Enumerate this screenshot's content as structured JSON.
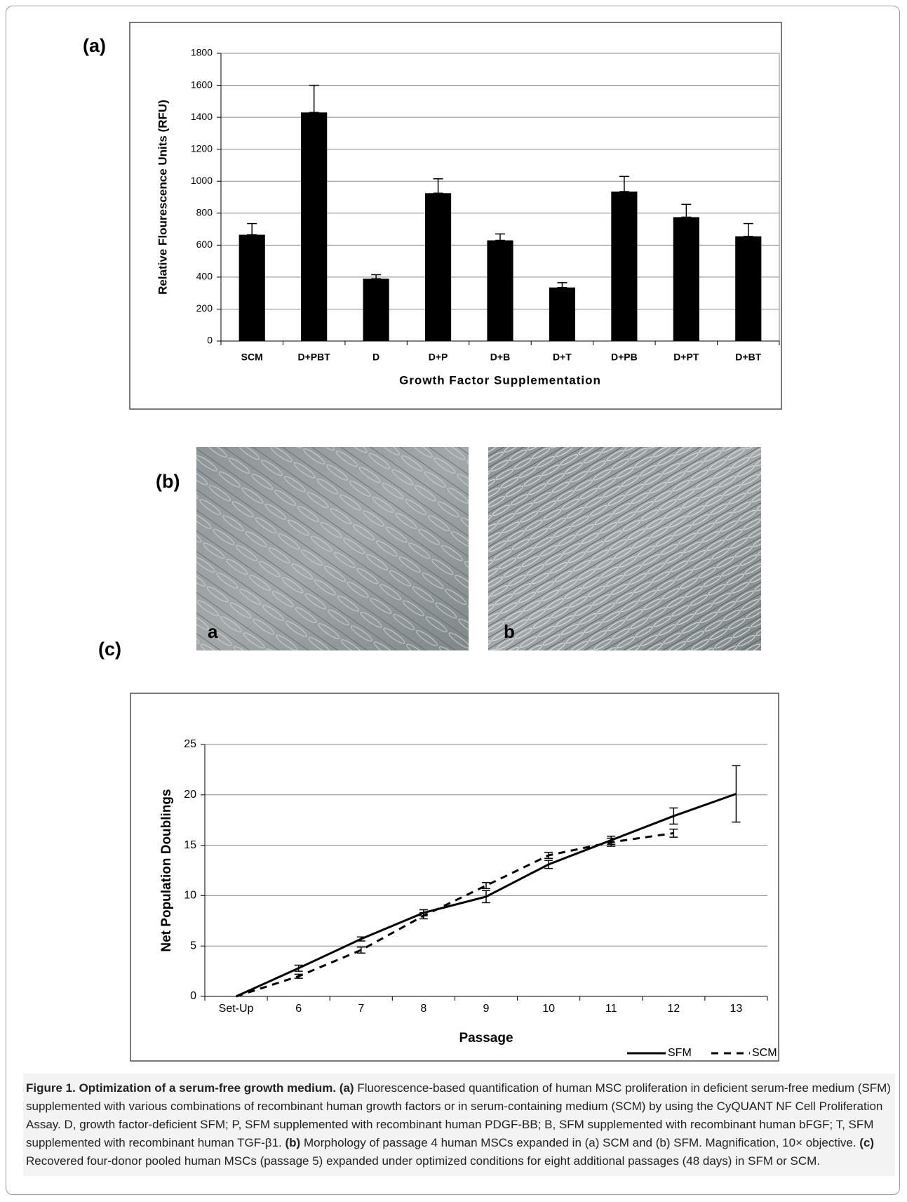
{
  "panels": {
    "a": "(a)",
    "b": "(b)",
    "c": "(c)"
  },
  "photos": [
    {
      "label": "a"
    },
    {
      "label": "b"
    }
  ],
  "chart_data": [
    {
      "type": "bar",
      "ylabel": "Relative Flourescence Units (RFU)",
      "xlabel": "Growth Factor Supplementation",
      "categories": [
        "SCM",
        "D+PBT",
        "D",
        "D+P",
        "D+B",
        "D+T",
        "D+PB",
        "D+PT",
        "D+BT"
      ],
      "values": [
        665,
        1430,
        390,
        925,
        630,
        335,
        935,
        775,
        655
      ],
      "errors": [
        70,
        170,
        25,
        90,
        40,
        30,
        95,
        80,
        80
      ],
      "color": "#000000",
      "ylim": [
        0,
        1800
      ],
      "yticks": [
        0,
        200,
        400,
        600,
        800,
        1000,
        1200,
        1400,
        1600,
        1800
      ],
      "grid": true
    },
    {
      "type": "line",
      "ylabel": "Net Population Doublings",
      "xlabel": "Passage",
      "categories": [
        "Set-Up",
        "6",
        "7",
        "8",
        "9",
        "10",
        "11",
        "12",
        "13"
      ],
      "series": [
        {
          "name": "SFM",
          "color": "#000000",
          "dash": false,
          "values": [
            0,
            2.8,
            5.7,
            8.3,
            9.9,
            13.1,
            15.5,
            17.9,
            20.1
          ],
          "errors": [
            null,
            0.3,
            0.2,
            0.3,
            0.6,
            0.4,
            0.4,
            0.8,
            2.8
          ]
        },
        {
          "name": "SCM",
          "color": "#000000",
          "dash": true,
          "values": [
            0,
            2.0,
            4.6,
            8.0,
            11.0,
            14.0,
            15.3,
            16.2,
            null
          ],
          "errors": [
            null,
            0.2,
            0.3,
            0.3,
            0.3,
            0.3,
            0.4,
            0.4,
            null
          ]
        }
      ],
      "ylim": [
        0,
        25
      ],
      "yticks": [
        0,
        5,
        10,
        15,
        20,
        25
      ],
      "grid": true,
      "legend": "bottom-right"
    }
  ],
  "caption": {
    "title": "Figure 1. Optimization of a serum-free growth medium.",
    "parts": [
      {
        "label": "(a)",
        "text": "Fluorescence-based quantification of human MSC proliferation in deficient serum-free medium (SFM) supplemented with various combinations of recombinant human growth factors or in serum-containing medium (SCM) by using the CyQUANT NF Cell Proliferation Assay. D, growth factor-deficient SFM; P, SFM supplemented with recombinant human PDGF-BB; B, SFM supplemented with recombinant human bFGF; T, SFM supplemented with recombinant human TGF-β1."
      },
      {
        "label": "(b)",
        "text": "Morphology of passage 4 human MSCs expanded in (a) SCM and (b) SFM. Magnification, 10× objective."
      },
      {
        "label": "(c)",
        "text": "Recovered four-donor pooled human MSCs (passage 5) expanded under optimized conditions for eight additional passages (48 days) in SFM or SCM."
      }
    ]
  }
}
